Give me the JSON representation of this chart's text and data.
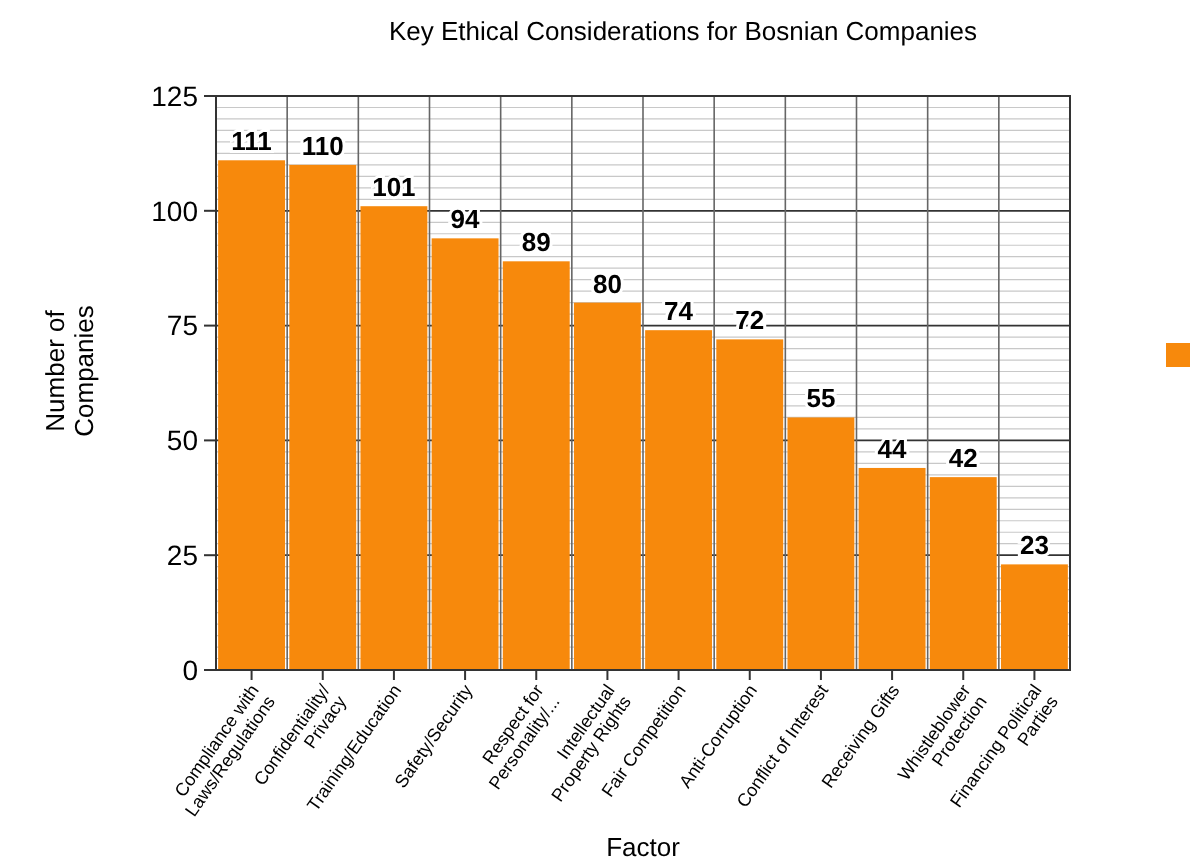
{
  "chart_data": {
    "type": "bar",
    "title": "Key Ethical Considerations for Bosnian Companies",
    "xlabel": "Factor",
    "ylabel": "Number of\nCompanies",
    "categories": [
      "Compliance with\nLaws/Regulations",
      "Confidentiality/\nPrivacy",
      "Training/Education",
      "Safety/Security",
      "Respect for\nPersonality/...",
      "Intellectual\nProperty Rights",
      "Fair Competition",
      "Anti-Corruption",
      "Conflict of Interest",
      "Receiving Gifts",
      "Whistleblower\nProtection",
      "Financing Political\nParties"
    ],
    "series": [
      {
        "color": "#f7890c",
        "values": [
          111,
          110,
          101,
          94,
          89,
          80,
          74,
          72,
          55,
          44,
          42,
          23
        ]
      }
    ],
    "ylim": [
      0,
      125
    ],
    "yticks": [
      0,
      {
        "value": 2.5,
        "label": null
      },
      {
        "value": 5,
        "label": null
      },
      {
        "value": 7.5,
        "label": null
      },
      {
        "value": 10,
        "label": null
      },
      {
        "value": 12.5,
        "label": null
      },
      {
        "value": 15,
        "label": null
      },
      {
        "value": 17.5,
        "label": null
      },
      {
        "value": 20,
        "label": null
      },
      {
        "value": 22.5,
        "label": null
      },
      25,
      {
        "value": 27.5,
        "label": null
      },
      {
        "value": 30,
        "label": null
      },
      {
        "value": 32.5,
        "label": null
      },
      {
        "value": 35,
        "label": null
      },
      {
        "value": 37.5,
        "label": null
      },
      {
        "value": 40,
        "label": null
      },
      {
        "value": 42.5,
        "label": null
      },
      {
        "value": 45,
        "label": null
      },
      {
        "value": 47.5,
        "label": null
      },
      50,
      {
        "value": 52.5,
        "label": null
      },
      {
        "value": 55,
        "label": null
      },
      {
        "value": 57.5,
        "label": null
      },
      {
        "value": 60,
        "label": null
      },
      {
        "value": 62.5,
        "label": null
      },
      {
        "value": 65,
        "label": null
      },
      {
        "value": 67.5,
        "label": null
      },
      {
        "value": 70,
        "label": null
      },
      {
        "value": 72.5,
        "label": null
      },
      75,
      {
        "value": 77.5,
        "label": null
      },
      {
        "value": 80,
        "label": null
      },
      {
        "value": 82.5,
        "label": null
      },
      {
        "value": 85,
        "label": null
      },
      {
        "value": 87.5,
        "label": null
      },
      {
        "value": 90,
        "label": null
      },
      {
        "value": 92.5,
        "label": null
      },
      {
        "value": 95,
        "label": null
      },
      {
        "value": 97.5,
        "label": null
      },
      100,
      {
        "value": 102.5,
        "label": null
      },
      {
        "value": 105,
        "label": null
      },
      {
        "value": 107.5,
        "label": null
      },
      {
        "value": 110,
        "label": null
      },
      {
        "value": 112.5,
        "label": null
      },
      {
        "value": 115,
        "label": null
      },
      {
        "value": 117.5,
        "label": null
      },
      {
        "value": 120,
        "label": null
      },
      {
        "value": 122.5,
        "label": null
      },
      125
    ],
    "grid": true,
    "data_labels": true
  }
}
